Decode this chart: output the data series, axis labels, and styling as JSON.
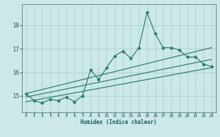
{
  "title": "",
  "xlabel": "Humidex (Indice chaleur)",
  "bg_color": "#cce8e8",
  "line_color": "#2e7d6e",
  "grid_color": "#aacfcf",
  "xlim": [
    -0.5,
    23.5
  ],
  "ylim": [
    14.3,
    18.9
  ],
  "xticks": [
    0,
    1,
    2,
    3,
    4,
    5,
    6,
    7,
    8,
    9,
    10,
    11,
    12,
    13,
    14,
    15,
    16,
    17,
    18,
    19,
    20,
    21,
    22,
    23
  ],
  "yticks": [
    15,
    16,
    17,
    18
  ],
  "main_series_x": [
    0,
    1,
    2,
    3,
    4,
    5,
    6,
    7,
    8,
    9,
    10,
    11,
    12,
    13,
    14,
    15,
    16,
    17,
    18,
    19,
    20,
    21,
    22,
    23
  ],
  "main_series_y": [
    15.1,
    14.8,
    14.7,
    14.85,
    14.8,
    14.95,
    14.75,
    15.0,
    16.1,
    15.7,
    16.2,
    16.7,
    16.9,
    16.6,
    17.05,
    18.55,
    17.65,
    17.05,
    17.05,
    16.95,
    16.65,
    16.65,
    16.35,
    16.25
  ],
  "line1_x": [
    0,
    23
  ],
  "line1_y": [
    14.75,
    16.2
  ],
  "line2_x": [
    0,
    23
  ],
  "line2_y": [
    14.95,
    16.55
  ],
  "line3_x": [
    0,
    23
  ],
  "line3_y": [
    15.1,
    17.05
  ]
}
